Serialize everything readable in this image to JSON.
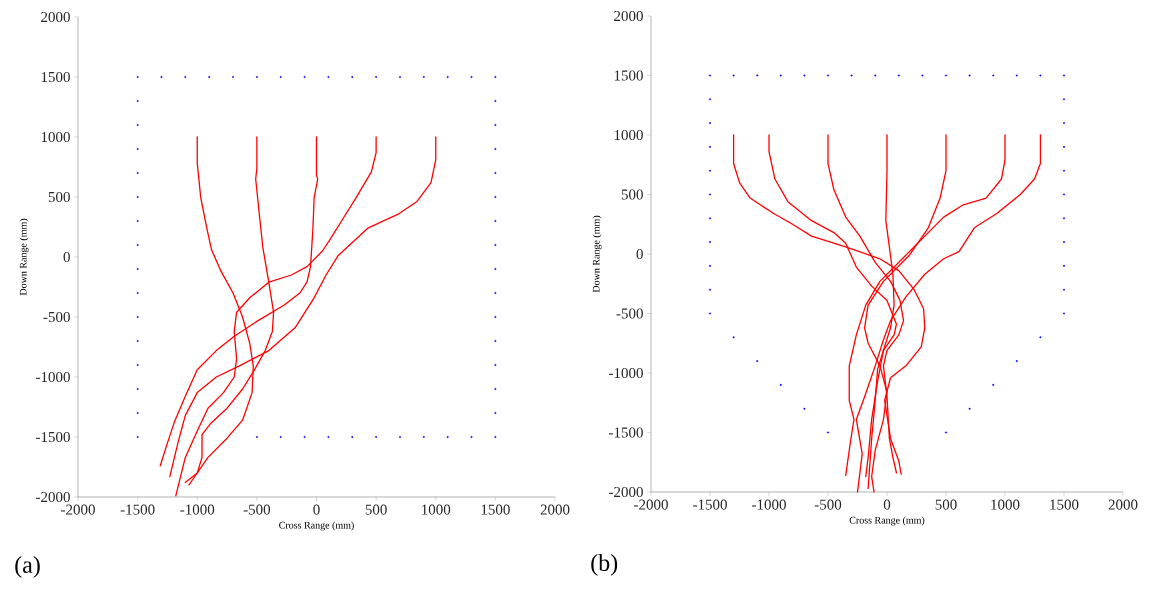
{
  "chart_data": [
    {
      "type": "line",
      "annotations": [
        "(a)"
      ],
      "xlabel": "Cross Range (mm)",
      "ylabel": "Down Range (mm)",
      "xlim": [
        -2000,
        2000
      ],
      "ylim": [
        -2000,
        2000
      ],
      "xticks": [
        -2000,
        -1500,
        -1000,
        -500,
        0,
        500,
        1000,
        1500,
        2000
      ],
      "yticks": [
        -2000,
        -1500,
        -1000,
        -500,
        0,
        500,
        1000,
        1500,
        2000
      ],
      "line_style": "solid",
      "series": [
        {
          "color": "#ff0000",
          "x": [
            -1000,
            -1000,
            -970,
            -920,
            -880,
            -800,
            -700,
            -620,
            -560,
            -530,
            -540,
            -620,
            -750,
            -910,
            -1070
          ],
          "values": [
            1000,
            780,
            490,
            240,
            60,
            -120,
            -300,
            -500,
            -720,
            -910,
            -1130,
            -1360,
            -1510,
            -1670,
            -1900
          ]
        },
        {
          "color": "#ff0000",
          "x": [
            -500,
            -500,
            -510,
            -480,
            -450,
            -400,
            -360,
            -370,
            -430,
            -520,
            -620,
            -750,
            -890,
            -960,
            -960,
            -1000,
            -1100
          ],
          "values": [
            1000,
            740,
            650,
            360,
            80,
            -210,
            -460,
            -620,
            -780,
            -940,
            -1100,
            -1260,
            -1390,
            -1480,
            -1670,
            -1800,
            -1880
          ]
        },
        {
          "color": "#ff0000",
          "x": [
            0,
            0,
            10,
            -20,
            -30,
            -50,
            -80,
            -140,
            -270,
            -490,
            -690,
            -840,
            -1000,
            -1100,
            -1190,
            -1260,
            -1310
          ],
          "values": [
            1000,
            680,
            650,
            490,
            240,
            -80,
            -210,
            -300,
            -400,
            -530,
            -660,
            -780,
            -940,
            -1160,
            -1370,
            -1580,
            -1740
          ]
        },
        {
          "color": "#ff0000",
          "x": [
            500,
            500,
            460,
            330,
            210,
            110,
            50,
            -80,
            -210,
            -400,
            -560,
            -670,
            -690,
            -670,
            -690,
            -780,
            -910,
            -1000,
            -1100,
            -1180
          ],
          "values": [
            1000,
            870,
            710,
            490,
            300,
            140,
            50,
            -80,
            -150,
            -210,
            -340,
            -460,
            -620,
            -850,
            -1000,
            -1130,
            -1260,
            -1450,
            -1670,
            -1990
          ]
        },
        {
          "color": "#ff0000",
          "x": [
            1000,
            1000,
            960,
            840,
            690,
            430,
            180,
            80,
            -20,
            -180,
            -400,
            -650,
            -840,
            -1000,
            -1100,
            -1160,
            -1230
          ],
          "values": [
            1000,
            810,
            620,
            460,
            360,
            240,
            10,
            -150,
            -340,
            -590,
            -780,
            -910,
            -1000,
            -1130,
            -1320,
            -1540,
            -1830
          ]
        },
        {
          "type": "scatter",
          "color": "#0000ff",
          "x": [
            -1500,
            -1300,
            -1100,
            -900,
            -700,
            -500,
            -300,
            -100,
            100,
            300,
            500,
            700,
            900,
            1100,
            1300,
            1500,
            -1500,
            -1500,
            -1500,
            -1500,
            -1500,
            -1500,
            -1500,
            -1500,
            -1500,
            -1500,
            -1500,
            -1500,
            -1500,
            -1500,
            -1500,
            1500,
            1500,
            1500,
            1500,
            1500,
            1500,
            1500,
            1500,
            1500,
            1500,
            1500,
            1500,
            1500,
            1500,
            1500,
            -500,
            -300,
            -100,
            100,
            300,
            500,
            700,
            900,
            1100,
            1300
          ],
          "values": [
            1500,
            1500,
            1500,
            1500,
            1500,
            1500,
            1500,
            1500,
            1500,
            1500,
            1500,
            1500,
            1500,
            1500,
            1500,
            1500,
            1300,
            1100,
            900,
            700,
            500,
            300,
            100,
            -100,
            -300,
            -500,
            -700,
            -900,
            -1100,
            -1300,
            -1500,
            1300,
            1100,
            900,
            700,
            500,
            300,
            100,
            -100,
            -300,
            -500,
            -700,
            -900,
            -1100,
            -1300,
            -1500,
            -1500,
            -1500,
            -1500,
            -1500,
            -1500,
            -1500,
            -1500,
            -1500,
            -1500,
            -1500
          ]
        }
      ]
    },
    {
      "type": "line",
      "annotations": [
        "(b)"
      ],
      "xlabel": "Cross Range (mm)",
      "ylabel": "Down Range (mm)",
      "xlim": [
        -2000,
        2000
      ],
      "ylim": [
        -2000,
        2000
      ],
      "xticks": [
        -2000,
        -1500,
        -1000,
        -500,
        0,
        500,
        1000,
        1500,
        2000
      ],
      "yticks": [
        -2000,
        -1500,
        -1000,
        -500,
        0,
        500,
        1000,
        1500,
        2000
      ],
      "line_style": "solid",
      "series": [
        {
          "color": "#ff0000",
          "x": [
            -1300,
            -1300,
            -1250,
            -1160,
            -960,
            -800,
            -640,
            -350,
            -60,
            100,
            230,
            310,
            320,
            290,
            160,
            30,
            -20,
            30,
            100,
            120
          ],
          "values": [
            1000,
            760,
            600,
            470,
            340,
            250,
            150,
            60,
            -40,
            -140,
            -300,
            -460,
            -620,
            -780,
            -940,
            -1040,
            -1230,
            -1550,
            -1740,
            -1850
          ]
        },
        {
          "color": "#ff0000",
          "x": [
            -1000,
            -1000,
            -950,
            -840,
            -640,
            -450,
            -350,
            -260,
            -130,
            0,
            80,
            60,
            -30,
            -80,
            -100,
            -130,
            -160
          ],
          "values": [
            1000,
            860,
            630,
            440,
            280,
            180,
            90,
            -110,
            -270,
            -390,
            -590,
            -680,
            -810,
            -970,
            -1230,
            -1550,
            -1970
          ]
        },
        {
          "color": "#ff0000",
          "x": [
            -500,
            -500,
            -450,
            -350,
            -230,
            -100,
            30,
            110,
            140,
            100,
            0,
            -30,
            0,
            20,
            50,
            80
          ],
          "values": [
            1000,
            760,
            540,
            310,
            150,
            -70,
            -230,
            -390,
            -560,
            -680,
            -810,
            -940,
            -1200,
            -1550,
            -1710,
            -1840
          ]
        },
        {
          "color": "#ff0000",
          "x": [
            0,
            0,
            -10,
            20,
            50,
            60,
            30,
            -30,
            -80,
            -130,
            -160,
            -180
          ],
          "values": [
            1000,
            700,
            280,
            60,
            -170,
            -430,
            -620,
            -810,
            -1070,
            -1390,
            -1710,
            -1870
          ]
        },
        {
          "color": "#ff0000",
          "x": [
            500,
            500,
            450,
            350,
            190,
            -30,
            -160,
            -190,
            -160,
            -60,
            0,
            -30,
            -100,
            -130,
            -110
          ],
          "values": [
            1000,
            700,
            470,
            220,
            -10,
            -230,
            -430,
            -620,
            -750,
            -940,
            -1160,
            -1390,
            -1650,
            -1870,
            -2000
          ]
        },
        {
          "color": "#ff0000",
          "x": [
            1000,
            1000,
            970,
            840,
            640,
            480,
            320,
            130,
            -60,
            -180,
            -260,
            -320,
            -320,
            -280,
            -310,
            -350
          ],
          "values": [
            1000,
            790,
            630,
            470,
            410,
            310,
            150,
            -40,
            -230,
            -430,
            -680,
            -940,
            -1230,
            -1390,
            -1580,
            -1860
          ]
        },
        {
          "color": "#ff0000",
          "x": [
            1300,
            1300,
            1250,
            1130,
            930,
            740,
            610,
            480,
            320,
            160,
            30,
            -30,
            -100,
            -190,
            -260,
            -210,
            -250
          ],
          "values": [
            1000,
            760,
            630,
            500,
            340,
            220,
            20,
            -40,
            -170,
            -360,
            -560,
            -720,
            -940,
            -1200,
            -1390,
            -1680,
            -2000
          ]
        },
        {
          "type": "scatter",
          "color": "#0000ff",
          "x": [
            -1500,
            -1300,
            -1100,
            -900,
            -700,
            -500,
            -300,
            -100,
            100,
            300,
            500,
            700,
            900,
            1100,
            1300,
            1500,
            -1500,
            -1500,
            -1500,
            -1500,
            -1500,
            -1500,
            -1500,
            -1500,
            -1500,
            -1500,
            1500,
            1500,
            1500,
            1500,
            1500,
            1500,
            1500,
            1500,
            1500,
            1500,
            -1300,
            -1100,
            -900,
            -700,
            -500,
            1300,
            1100,
            900,
            700,
            500
          ],
          "values": [
            1500,
            1500,
            1500,
            1500,
            1500,
            1500,
            1500,
            1500,
            1500,
            1500,
            1500,
            1500,
            1500,
            1500,
            1500,
            1500,
            1300,
            1100,
            900,
            700,
            500,
            300,
            100,
            -100,
            -300,
            -500,
            1300,
            1100,
            900,
            700,
            500,
            300,
            100,
            -100,
            -300,
            -500,
            -700,
            -900,
            -1100,
            -1300,
            -1500,
            -700,
            -900,
            -1100,
            -1300,
            -1500
          ]
        }
      ]
    }
  ]
}
